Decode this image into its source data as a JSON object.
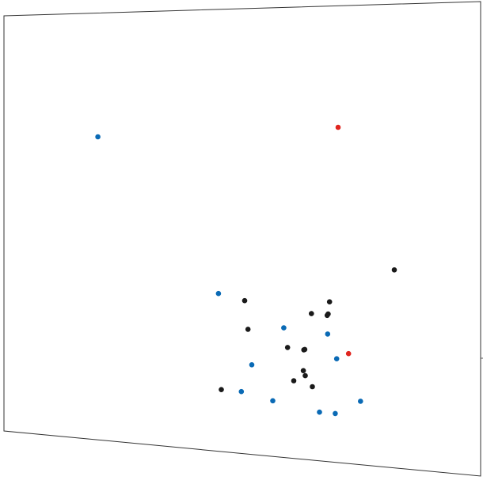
{
  "chart_data": {
    "type": "scatter",
    "title": "",
    "xlabel": "",
    "ylabel": "",
    "grid": false,
    "legend": "none",
    "colors": {
      "black": "#1a1a1a",
      "blue": "#0a6ab5",
      "red": "#e0251f",
      "frame": "#333333"
    },
    "xlim": [
      0,
      100
    ],
    "ylim": [
      0,
      100
    ],
    "series": [
      {
        "color_key": "black",
        "points": [
          {
            "x": 81.9,
            "y": 42.7
          },
          {
            "x": 50.5,
            "y": 34.4
          },
          {
            "x": 68.3,
            "y": 35.1
          },
          {
            "x": 64.5,
            "y": 32.3
          },
          {
            "x": 67.8,
            "y": 32.1
          },
          {
            "x": 68.0,
            "y": 32.4
          },
          {
            "x": 51.2,
            "y": 28.0
          },
          {
            "x": 59.5,
            "y": 24.5
          },
          {
            "x": 63.1,
            "y": 24.3
          },
          {
            "x": 62.9,
            "y": 24.2
          },
          {
            "x": 62.8,
            "y": 19.6
          },
          {
            "x": 63.2,
            "y": 18.5
          },
          {
            "x": 60.8,
            "y": 17.2
          },
          {
            "x": 64.7,
            "y": 16.2
          },
          {
            "x": 45.6,
            "y": 14.0
          }
        ]
      },
      {
        "color_key": "blue",
        "points": [
          {
            "x": 19.7,
            "y": 71.0
          },
          {
            "x": 45.0,
            "y": 35.7
          },
          {
            "x": 58.7,
            "y": 28.8
          },
          {
            "x": 67.9,
            "y": 28.0
          },
          {
            "x": 69.8,
            "y": 22.7
          },
          {
            "x": 52.0,
            "y": 20.1
          },
          {
            "x": 49.8,
            "y": 13.9
          },
          {
            "x": 56.4,
            "y": 12.4
          },
          {
            "x": 74.8,
            "y": 13.8
          },
          {
            "x": 66.2,
            "y": 10.7
          },
          {
            "x": 69.5,
            "y": 10.7
          }
        ]
      },
      {
        "color_key": "red",
        "points": [
          {
            "x": 70.1,
            "y": 73.4
          },
          {
            "x": 72.3,
            "y": 24.0
          }
        ]
      }
    ]
  }
}
